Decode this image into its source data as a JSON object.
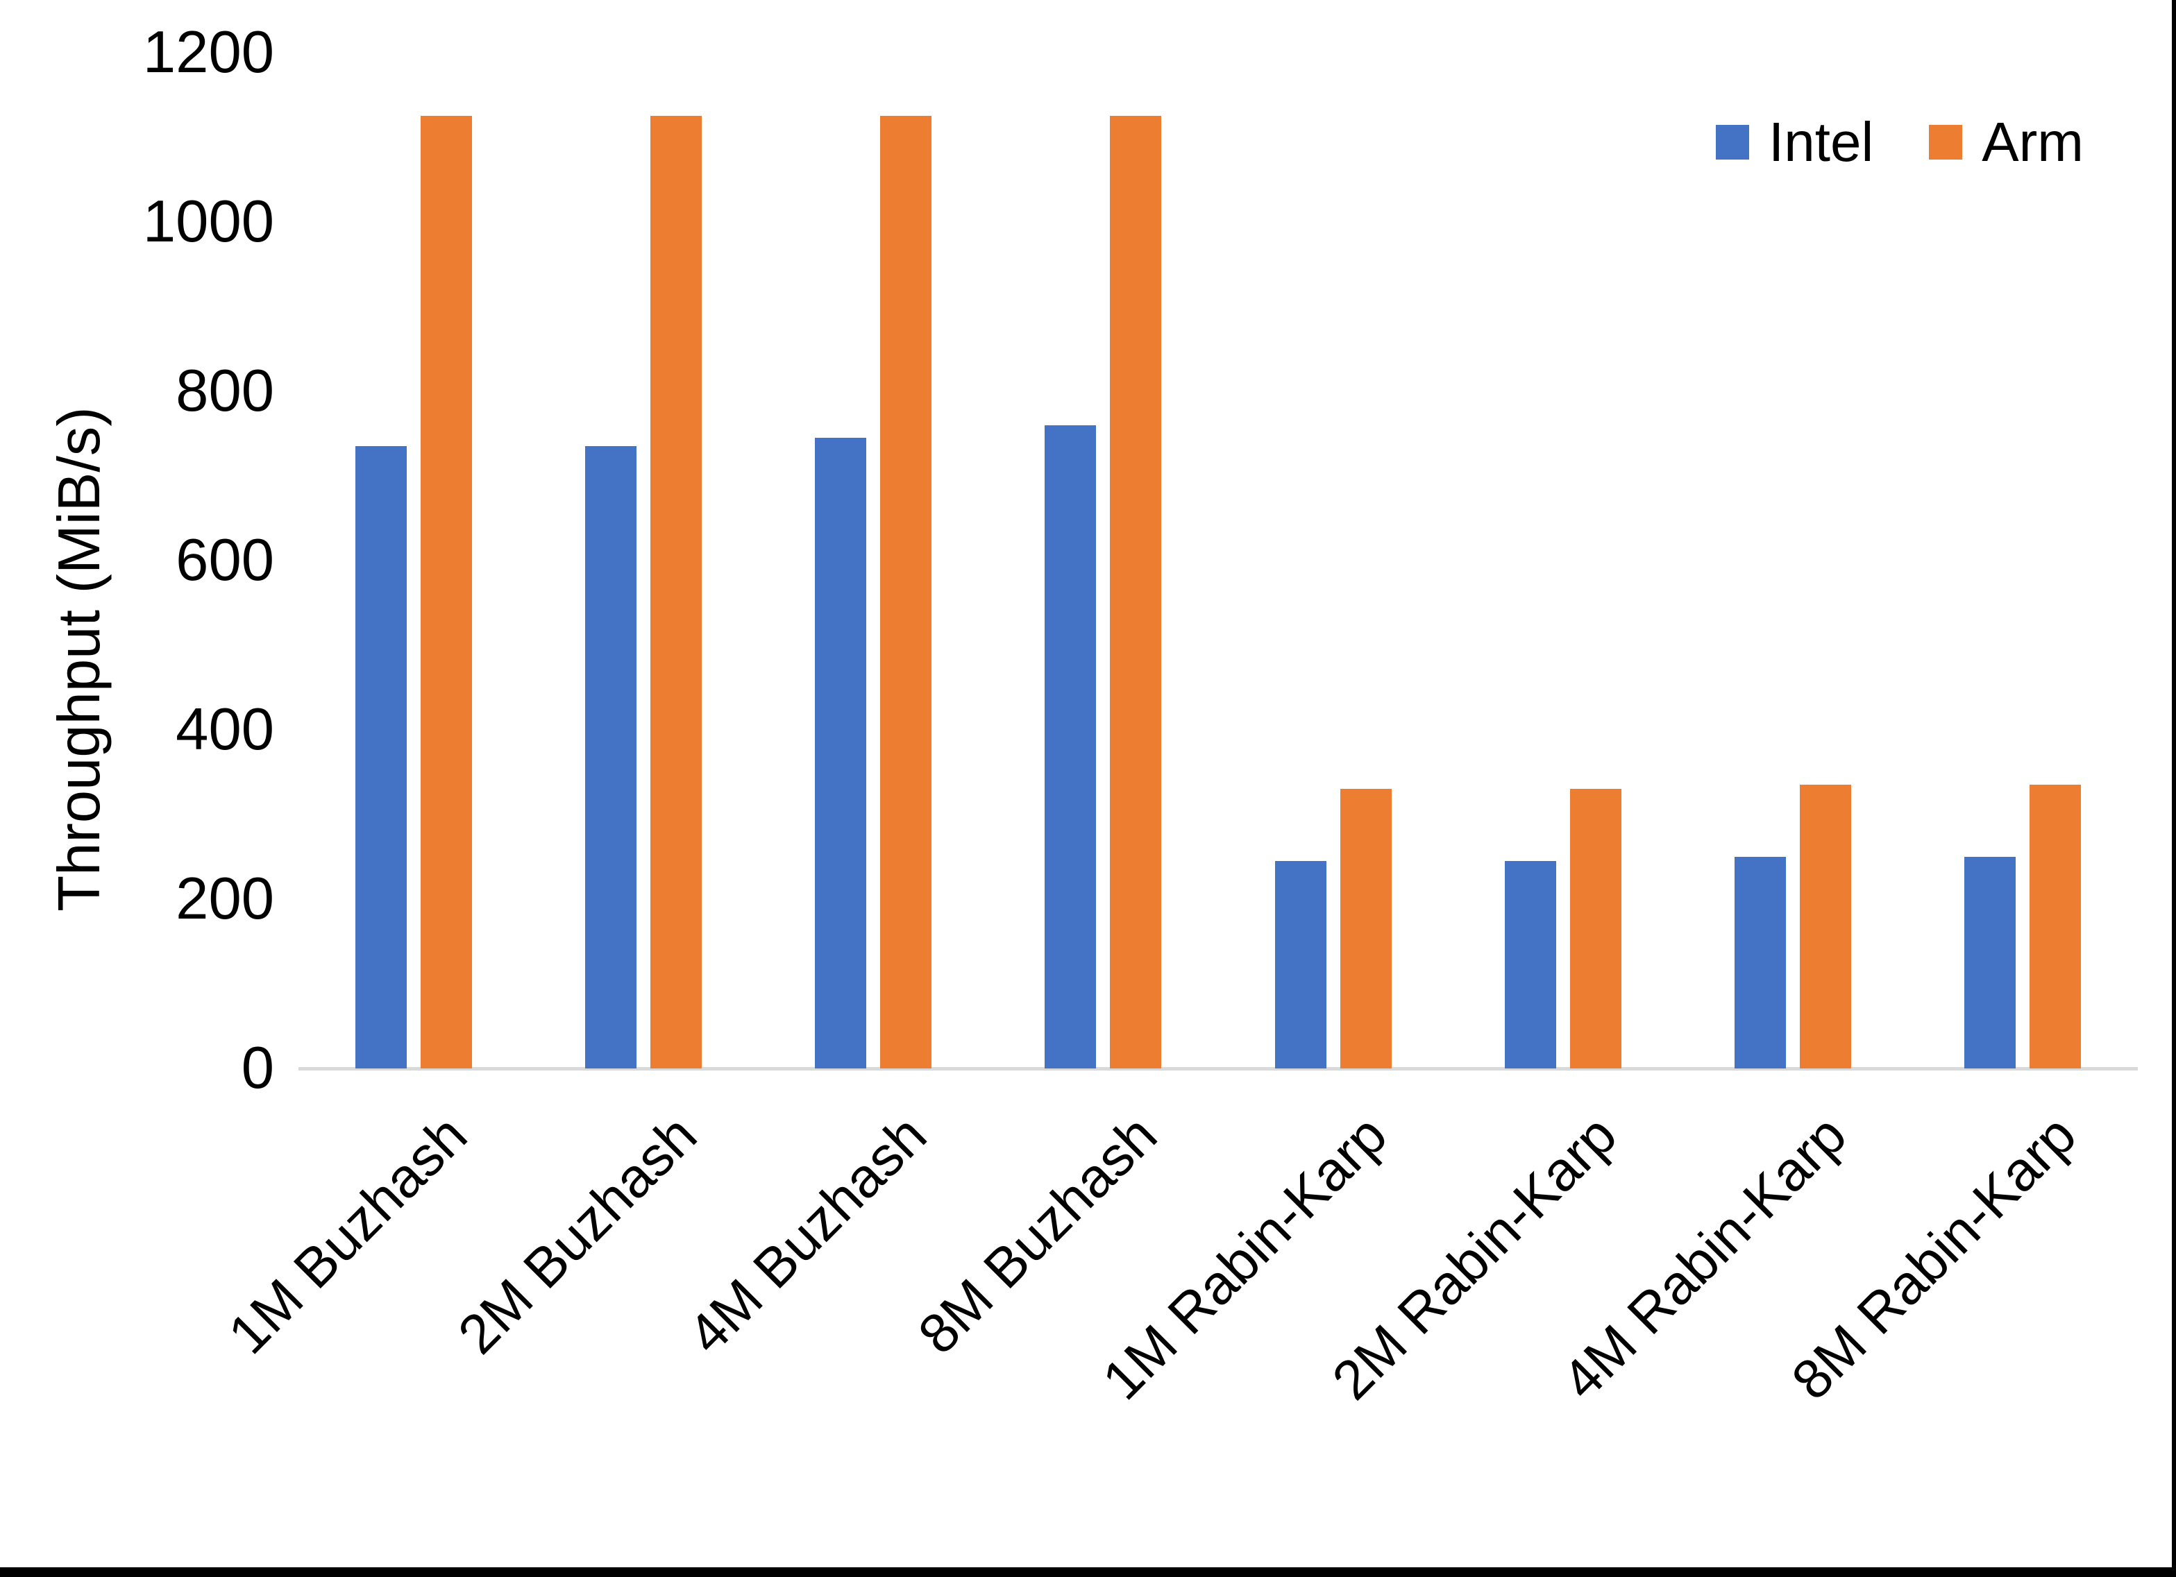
{
  "chart_data": {
    "type": "bar",
    "title": "",
    "xlabel": "",
    "ylabel": "Throughput (MiB/s)",
    "categories": [
      "1M Buzhash",
      "2M Buzhash",
      "4M Buzhash",
      "8M Buzhash",
      "1M Rabin-Karp",
      "2M Rabin-Karp",
      "4M Rabin-Karp",
      "8M Rabin-Karp"
    ],
    "series": [
      {
        "name": "Intel",
        "color": "#4472C4",
        "values": [
          735,
          735,
          745,
          760,
          245,
          245,
          250,
          250
        ]
      },
      {
        "name": "Arm",
        "color": "#ED7D31",
        "values": [
          1125,
          1125,
          1125,
          1125,
          330,
          330,
          335,
          335
        ]
      }
    ],
    "y_axis": {
      "min": 0,
      "max": 1200,
      "tick_step": 200,
      "ticks": [
        0,
        200,
        400,
        600,
        800,
        1000,
        1200
      ]
    },
    "legend_position": "top-right",
    "grid": false,
    "axis_line_color": "#D9D9D9",
    "text_color": "#000000",
    "background_color": "#FFFFFF"
  }
}
